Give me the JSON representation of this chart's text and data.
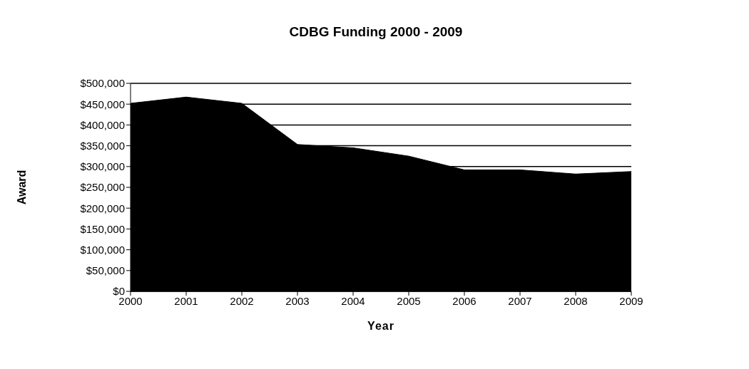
{
  "chart_data": {
    "type": "area",
    "title": "CDBG Funding 2000 - 2009",
    "xlabel": "Year",
    "ylabel": "Award",
    "categories": [
      "2000",
      "2001",
      "2002",
      "2003",
      "2004",
      "2005",
      "2006",
      "2007",
      "2008",
      "2009"
    ],
    "values": [
      452000,
      467000,
      452000,
      353000,
      345000,
      325000,
      292000,
      292000,
      282000,
      288000
    ],
    "color": "#000000",
    "ylim": [
      0,
      500000
    ],
    "yticks": [
      {
        "value": 0,
        "label": "$0"
      },
      {
        "value": 50000,
        "label": "$50,000"
      },
      {
        "value": 100000,
        "label": "$100,000"
      },
      {
        "value": 150000,
        "label": "$150,000"
      },
      {
        "value": 200000,
        "label": "$200,000"
      },
      {
        "value": 250000,
        "label": "$250,000"
      },
      {
        "value": 300000,
        "label": "$300,000"
      },
      {
        "value": 350000,
        "label": "$350,000"
      },
      {
        "value": 400000,
        "label": "$400,000"
      },
      {
        "value": 450000,
        "label": "$450,000"
      },
      {
        "value": 500000,
        "label": "$500,000"
      }
    ],
    "grid": "y"
  }
}
